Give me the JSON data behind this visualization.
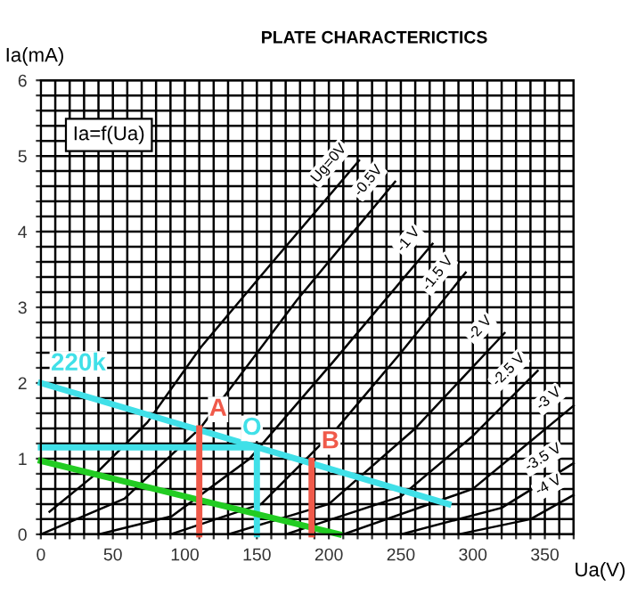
{
  "chart_data": {
    "type": "line",
    "title": "PLATE CHARACTERICTICS",
    "xlabel": "Ua(V)",
    "ylabel": "Ia(mA)",
    "annotations": [
      "Ia=f(Ua)"
    ],
    "xlim": [
      0,
      370
    ],
    "ylim": [
      0,
      6
    ],
    "xticks": [
      0,
      {
        "value": 10,
        "label": null
      },
      {
        "value": 20,
        "label": null
      },
      {
        "value": 30,
        "label": null
      },
      {
        "value": 40,
        "label": null
      },
      50,
      {
        "value": 60,
        "label": null
      },
      {
        "value": 70,
        "label": null
      },
      {
        "value": 80,
        "label": null
      },
      {
        "value": 90,
        "label": null
      },
      100,
      {
        "value": 110,
        "label": null
      },
      {
        "value": 120,
        "label": null
      },
      {
        "value": 130,
        "label": null
      },
      {
        "value": 140,
        "label": null
      },
      150,
      {
        "value": 160,
        "label": null
      },
      {
        "value": 170,
        "label": null
      },
      {
        "value": 180,
        "label": null
      },
      {
        "value": 190,
        "label": null
      },
      200,
      {
        "value": 210,
        "label": null
      },
      {
        "value": 220,
        "label": null
      },
      {
        "value": 230,
        "label": null
      },
      {
        "value": 240,
        "label": null
      },
      250,
      {
        "value": 260,
        "label": null
      },
      {
        "value": 270,
        "label": null
      },
      {
        "value": 280,
        "label": null
      },
      {
        "value": 290,
        "label": null
      },
      300,
      {
        "value": 310,
        "label": null
      },
      {
        "value": 320,
        "label": null
      },
      {
        "value": 330,
        "label": null
      },
      {
        "value": 340,
        "label": null
      },
      350,
      {
        "value": 360,
        "label": null
      },
      {
        "value": 370,
        "label": null
      }
    ],
    "yticks": [
      0,
      {
        "value": 0.2,
        "label": null
      },
      {
        "value": 0.4,
        "label": null
      },
      {
        "value": 0.6,
        "label": null
      },
      {
        "value": 0.8,
        "label": null
      },
      1,
      {
        "value": 1.2,
        "label": null
      },
      {
        "value": 1.4,
        "label": null
      },
      {
        "value": 1.6,
        "label": null
      },
      {
        "value": 1.8,
        "label": null
      },
      2,
      {
        "value": 2.2,
        "label": null
      },
      {
        "value": 2.4,
        "label": null
      },
      {
        "value": 2.6,
        "label": null
      },
      {
        "value": 2.8,
        "label": null
      },
      3,
      {
        "value": 3.2,
        "label": null
      },
      {
        "value": 3.4,
        "label": null
      },
      {
        "value": 3.6,
        "label": null
      },
      {
        "value": 3.8,
        "label": null
      },
      4,
      {
        "value": 4.2,
        "label": null
      },
      {
        "value": 4.4,
        "label": null
      },
      {
        "value": 4.6,
        "label": null
      },
      {
        "value": 4.8,
        "label": null
      },
      5,
      {
        "value": 5.2,
        "label": null
      },
      {
        "value": 5.4,
        "label": null
      },
      {
        "value": 5.6,
        "label": null
      },
      {
        "value": 5.8,
        "label": null
      },
      6
    ],
    "grid": true,
    "marker": "none",
    "line_style": "solid",
    "series": [
      {
        "name": "Ug=0V",
        "color": "#000000",
        "x": [
          6,
          37,
          74,
          111,
          161,
          221
        ],
        "values": [
          0.3,
          0.78,
          1.48,
          2.47,
          3.6,
          4.94
        ]
      },
      {
        "name": "-0.5V",
        "color": "#000000",
        "x": [
          0,
          58,
          111,
          178,
          246
        ],
        "values": [
          0,
          0.47,
          1.41,
          3.1,
          4.66
        ]
      },
      {
        "name": "-1 V",
        "color": "#000000",
        "x": [
          40,
          91,
          145,
          203,
          272
        ],
        "values": [
          0,
          0.24,
          1.0,
          2.28,
          3.84
        ]
      },
      {
        "name": "-1.5 V",
        "color": "#000000",
        "x": [
          90,
          153,
          206,
          250,
          295
        ],
        "values": [
          0,
          0.4,
          1.41,
          2.4,
          3.46
        ]
      },
      {
        "name": "-2 V",
        "color": "#000000",
        "x": [
          130,
          200,
          260,
          322
        ],
        "values": [
          0,
          0.4,
          1.4,
          2.66
        ]
      },
      {
        "name": "-2.5 V",
        "color": "#000000",
        "x": [
          170,
          250,
          300,
          345
        ],
        "values": [
          0,
          0.5,
          1.3,
          2.16
        ]
      },
      {
        "name": "-3 V",
        "color": "#000000",
        "x": [
          210,
          300,
          370
        ],
        "values": [
          0,
          0.6,
          1.7
        ]
      },
      {
        "name": "-3.5 V",
        "color": "#000000",
        "x": [
          250,
          320,
          370
        ],
        "values": [
          0,
          0.35,
          0.94
        ]
      },
      {
        "name": "-4 V",
        "color": "#000000",
        "x": [
          290,
          340,
          370
        ],
        "values": [
          0,
          0.2,
          0.52
        ]
      },
      {
        "name": "220k",
        "color": "#40e0e8",
        "x": [
          0,
          283
        ],
        "values": [
          2.0,
          0.4
        ]
      },
      {
        "name": "O",
        "color": "#40e0e8",
        "x": [
          0,
          150,
          150
        ],
        "values": [
          1.15,
          1.15,
          0
        ]
      },
      {
        "color": "#22cc22",
        "x": [
          0,
          207
        ],
        "values": [
          0.97,
          0
        ]
      },
      {
        "name": "A",
        "color": "#f05a4a",
        "x": [
          110,
          110
        ],
        "values": [
          1.4,
          0
        ]
      },
      {
        "name": "B",
        "color": "#f05a4a",
        "x": [
          188,
          188
        ],
        "values": [
          0.97,
          0
        ]
      }
    ]
  }
}
